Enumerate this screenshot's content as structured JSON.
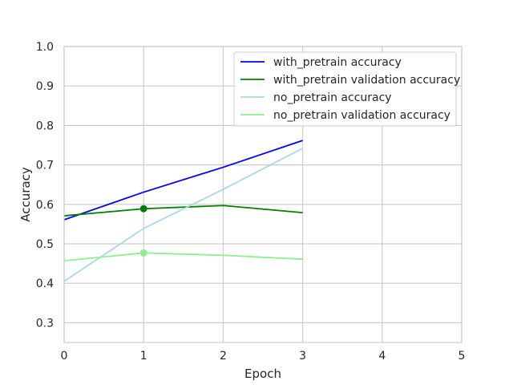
{
  "chart_data": {
    "type": "line",
    "title": "",
    "xlabel": "Epoch",
    "ylabel": "Accuracy",
    "xlim": [
      0,
      5
    ],
    "ylim": [
      0.25,
      1.0
    ],
    "xticks": [
      0,
      1,
      2,
      3,
      4,
      5
    ],
    "yticks": [
      0.3,
      0.4,
      0.5,
      0.6,
      0.7,
      0.8,
      0.9,
      1.0
    ],
    "grid": true,
    "legend_position": "top-right",
    "x": [
      0,
      1,
      2,
      3
    ],
    "series": [
      {
        "name": "with_pretrain accuracy",
        "color": "#0000ee",
        "values": [
          0.561,
          0.631,
          0.694,
          0.762
        ]
      },
      {
        "name": "with_pretrain validation accuracy",
        "color": "#008000",
        "values": [
          0.571,
          0.589,
          0.597,
          0.579
        ],
        "marker_index": 1
      },
      {
        "name": "no_pretrain accuracy",
        "color": "#a8d8e8",
        "values": [
          0.405,
          0.539,
          0.638,
          0.742
        ]
      },
      {
        "name": "no_pretrain validation accuracy",
        "color": "#90ee90",
        "values": [
          0.457,
          0.477,
          0.471,
          0.461
        ],
        "marker_index": 1
      }
    ]
  }
}
